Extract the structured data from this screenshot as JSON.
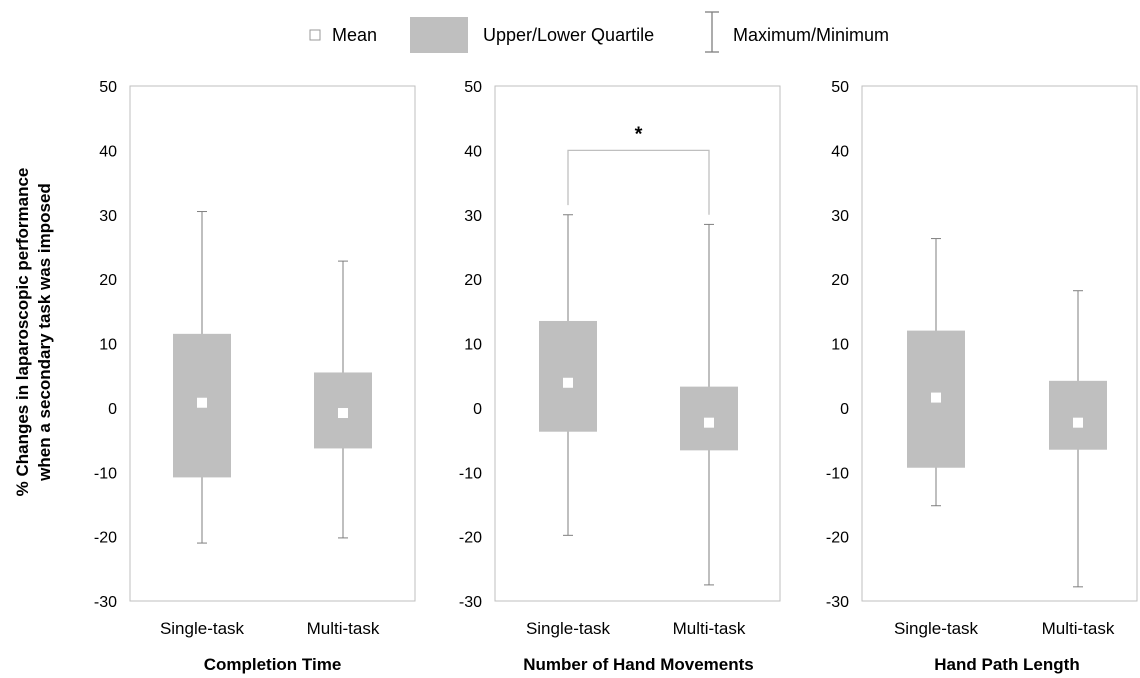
{
  "legend": {
    "mean_label": "Mean",
    "quartile_label": "Upper/Lower Quartile",
    "range_label": "Maximum/Minimum"
  },
  "colors": {
    "box": "#bfbfbf",
    "mean": "#ffffff",
    "whisker": "#7f7f7f",
    "axis": "#bfbfbf"
  },
  "ylabel_line1": "% Changes in laparoscopic performance",
  "ylabel_line2": "when a secondary task was imposed",
  "chart_data": [
    {
      "type": "box",
      "title": "Completion Time",
      "xlabel": "Completion Time",
      "ylim": [
        -30,
        50
      ],
      "yticks": [
        -30,
        -20,
        -10,
        0,
        10,
        20,
        30,
        40,
        50
      ],
      "categories": [
        "Single-task",
        "Multi-task"
      ],
      "boxes": [
        {
          "category": "Single-task",
          "min": -21,
          "q1": -10.8,
          "mean": 0.8,
          "q3": 11.5,
          "max": 30.5
        },
        {
          "category": "Multi-task",
          "min": -20.2,
          "q1": -6.3,
          "mean": -0.8,
          "q3": 5.5,
          "max": 22.8
        }
      ],
      "significance": null
    },
    {
      "type": "box",
      "title": "Number of Hand Movements",
      "xlabel": "Number of Hand Movements",
      "ylim": [
        -30,
        50
      ],
      "yticks": [
        -30,
        -20,
        -10,
        0,
        10,
        20,
        30,
        40,
        50
      ],
      "categories": [
        "Single-task",
        "Multi-task"
      ],
      "boxes": [
        {
          "category": "Single-task",
          "min": -19.8,
          "q1": -3.7,
          "mean": 3.9,
          "q3": 13.5,
          "max": 30.0
        },
        {
          "category": "Multi-task",
          "min": -27.5,
          "q1": -6.6,
          "mean": -2.3,
          "q3": 3.3,
          "max": 28.5
        }
      ],
      "significance": {
        "label": "*",
        "bracket_y": 40,
        "from": 0,
        "to": 1
      }
    },
    {
      "type": "box",
      "title": "Hand Path Length",
      "xlabel": "Hand Path Length",
      "ylim": [
        -30,
        50
      ],
      "yticks": [
        -30,
        -20,
        -10,
        0,
        10,
        20,
        30,
        40,
        50
      ],
      "categories": [
        "Single-task",
        "Multi-task"
      ],
      "boxes": [
        {
          "category": "Single-task",
          "min": -15.2,
          "q1": -9.3,
          "mean": 1.6,
          "q3": 12.0,
          "max": 26.3
        },
        {
          "category": "Multi-task",
          "min": -27.8,
          "q1": -6.5,
          "mean": -2.3,
          "q3": 4.2,
          "max": 18.2
        }
      ],
      "significance": null
    }
  ]
}
